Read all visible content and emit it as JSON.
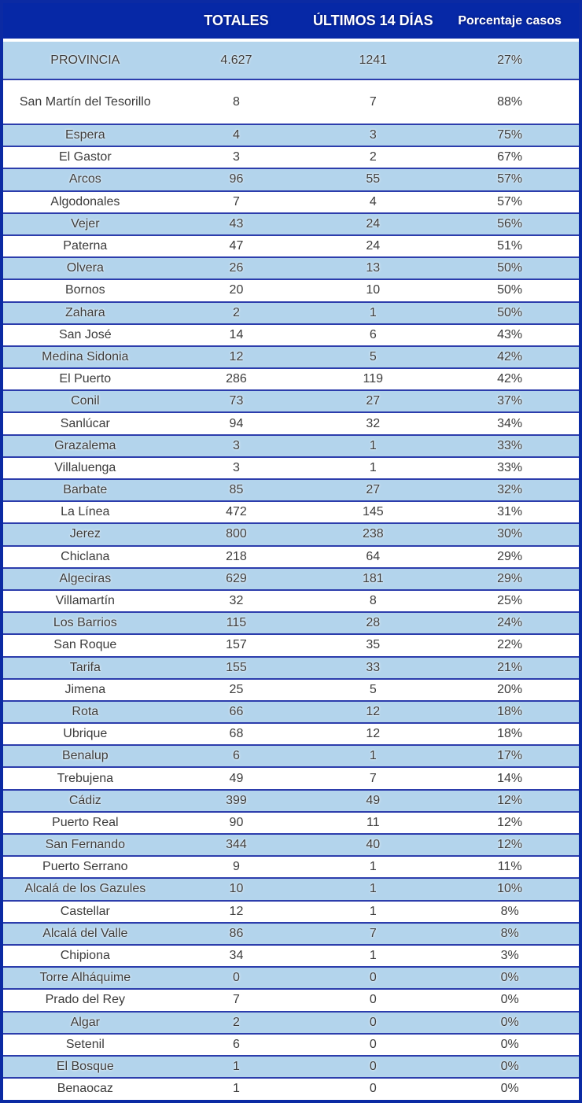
{
  "chart_data": {
    "type": "table",
    "title": "",
    "columns": [
      "",
      "TOTALES",
      "ÚLTIMOS 14 DÍAS",
      "Porcentaje casos"
    ],
    "column_keys": [
      "municipio",
      "totales",
      "ultimos_14_dias",
      "porcentaje_casos"
    ],
    "rows": [
      [
        "PROVINCIA",
        "4.627",
        "1241",
        "27%"
      ],
      [
        "San Martín del Tesorillo",
        "8",
        "7",
        "88%"
      ],
      [
        "Espera",
        "4",
        "3",
        "75%"
      ],
      [
        "El Gastor",
        "3",
        "2",
        "67%"
      ],
      [
        "Arcos",
        "96",
        "55",
        "57%"
      ],
      [
        "Algodonales",
        "7",
        "4",
        "57%"
      ],
      [
        "Vejer",
        "43",
        "24",
        "56%"
      ],
      [
        "Paterna",
        "47",
        "24",
        "51%"
      ],
      [
        "Olvera",
        "26",
        "13",
        "50%"
      ],
      [
        "Bornos",
        "20",
        "10",
        "50%"
      ],
      [
        "Zahara",
        "2",
        "1",
        "50%"
      ],
      [
        "San José",
        "14",
        "6",
        "43%"
      ],
      [
        "Medina Sidonia",
        "12",
        "5",
        "42%"
      ],
      [
        "El Puerto",
        "286",
        "119",
        "42%"
      ],
      [
        "Conil",
        "73",
        "27",
        "37%"
      ],
      [
        "Sanlúcar",
        "94",
        "32",
        "34%"
      ],
      [
        "Grazalema",
        "3",
        "1",
        "33%"
      ],
      [
        "Villaluenga",
        "3",
        "1",
        "33%"
      ],
      [
        "Barbate",
        "85",
        "27",
        "32%"
      ],
      [
        "La Línea",
        "472",
        "145",
        "31%"
      ],
      [
        "Jerez",
        "800",
        "238",
        "30%"
      ],
      [
        "Chiclana",
        "218",
        "64",
        "29%"
      ],
      [
        "Algeciras",
        "629",
        "181",
        "29%"
      ],
      [
        "Villamartín",
        "32",
        "8",
        "25%"
      ],
      [
        "Los Barrios",
        "115",
        "28",
        "24%"
      ],
      [
        "San Roque",
        "157",
        "35",
        "22%"
      ],
      [
        "Tarifa",
        "155",
        "33",
        "21%"
      ],
      [
        "Jimena",
        "25",
        "5",
        "20%"
      ],
      [
        "Rota",
        "66",
        "12",
        "18%"
      ],
      [
        "Ubrique",
        "68",
        "12",
        "18%"
      ],
      [
        "Benalup",
        "6",
        "1",
        "17%"
      ],
      [
        "Trebujena",
        "49",
        "7",
        "14%"
      ],
      [
        "Cádiz",
        "399",
        "49",
        "12%"
      ],
      [
        "Puerto Real",
        "90",
        "11",
        "12%"
      ],
      [
        "San Fernando",
        "344",
        "40",
        "12%"
      ],
      [
        "Puerto Serrano",
        "9",
        "1",
        "11%"
      ],
      [
        "Alcalá de los Gazules",
        "10",
        "1",
        "10%"
      ],
      [
        "Castellar",
        "12",
        "1",
        "8%"
      ],
      [
        "Alcalá del Valle",
        "86",
        "7",
        "8%"
      ],
      [
        "Chipiona",
        "34",
        "1",
        "3%"
      ],
      [
        "Torre Alháquime",
        "0",
        "0",
        "0%"
      ],
      [
        "Prado del Rey",
        "7",
        "0",
        "0%"
      ],
      [
        "Algar",
        "2",
        "0",
        "0%"
      ],
      [
        "Setenil",
        "6",
        "0",
        "0%"
      ],
      [
        "El Bosque",
        "1",
        "0",
        "0%"
      ],
      [
        "Benaocaz",
        "1",
        "0",
        "0%"
      ]
    ],
    "layout_hints": {
      "zebra_striping": "alternating light-blue / white starting blue on PROVINCIA row",
      "alignment": "all columns centered",
      "grid": "horizontal separators only"
    }
  },
  "colors": {
    "header_bg": "#0628a6",
    "row_blue": "#b3d4ec",
    "row_white": "#ffffff",
    "outer_border": "#0b2aa3",
    "separator": "#2c3dac",
    "header_text": "#ffffff",
    "body_text": "#3b3b3b"
  }
}
